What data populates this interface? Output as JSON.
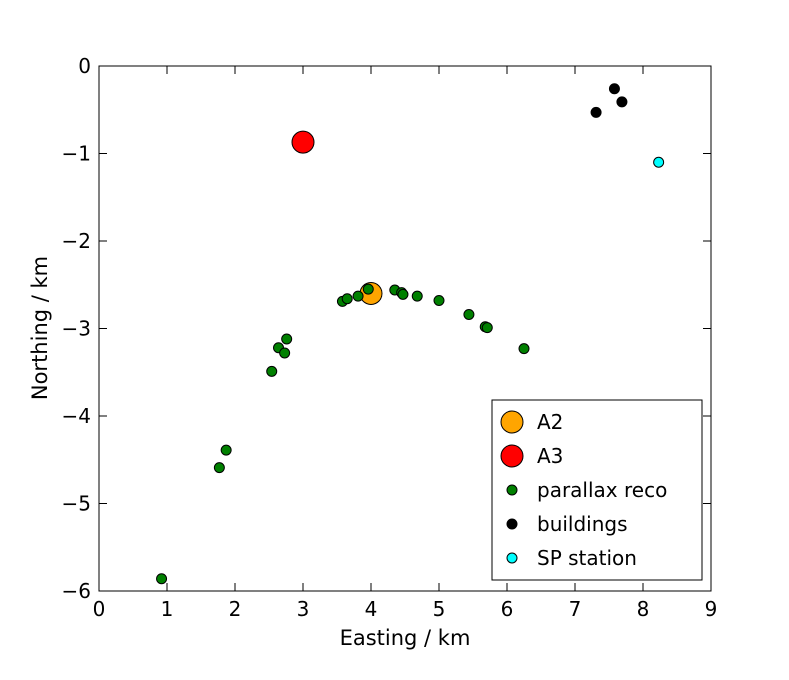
{
  "chart_data": {
    "type": "scatter",
    "title": "",
    "xlabel": "Easting / km",
    "ylabel": "Northing / km",
    "xlim": [
      0,
      9
    ],
    "ylim": [
      -6,
      0
    ],
    "xticks": [
      0,
      1,
      2,
      3,
      4,
      5,
      6,
      7,
      8,
      9
    ],
    "yticks": [
      0,
      -1,
      -2,
      -3,
      -4,
      -5,
      -6
    ],
    "xtick_labels": [
      "0",
      "1",
      "2",
      "3",
      "4",
      "5",
      "6",
      "7",
      "8",
      "9"
    ],
    "ytick_labels": [
      "0",
      "−1",
      "−2",
      "−3",
      "−4",
      "−5",
      "−6"
    ],
    "grid": false,
    "legend_position": "bottom-right",
    "series": [
      {
        "name": "A2",
        "color": "#ffa500",
        "marker_size": "large",
        "points": [
          [
            4.0,
            -2.6
          ]
        ]
      },
      {
        "name": "A3",
        "color": "#ff0000",
        "marker_size": "large",
        "points": [
          [
            3.0,
            -0.87
          ]
        ]
      },
      {
        "name": "parallax reco",
        "color": "#008000",
        "marker_size": "small",
        "points": [
          [
            0.92,
            -5.86
          ],
          [
            1.77,
            -4.59
          ],
          [
            1.87,
            -4.39
          ],
          [
            2.54,
            -3.49
          ],
          [
            2.64,
            -3.22
          ],
          [
            2.73,
            -3.28
          ],
          [
            2.76,
            -3.12
          ],
          [
            3.58,
            -2.69
          ],
          [
            3.65,
            -2.66
          ],
          [
            3.81,
            -2.63
          ],
          [
            3.96,
            -2.55
          ],
          [
            4.35,
            -2.56
          ],
          [
            4.45,
            -2.59
          ],
          [
            4.47,
            -2.61
          ],
          [
            4.68,
            -2.63
          ],
          [
            5.0,
            -2.68
          ],
          [
            5.44,
            -2.84
          ],
          [
            5.68,
            -2.98
          ],
          [
            5.71,
            -2.99
          ],
          [
            6.25,
            -3.23
          ]
        ]
      },
      {
        "name": "buildings",
        "color": "#000000",
        "marker_size": "small",
        "points": [
          [
            7.31,
            -0.53
          ],
          [
            7.58,
            -0.26
          ],
          [
            7.69,
            -0.41
          ]
        ]
      },
      {
        "name": "SP station",
        "color": "#00ffff",
        "marker_size": "small",
        "points": [
          [
            8.23,
            -1.1
          ]
        ]
      }
    ]
  }
}
